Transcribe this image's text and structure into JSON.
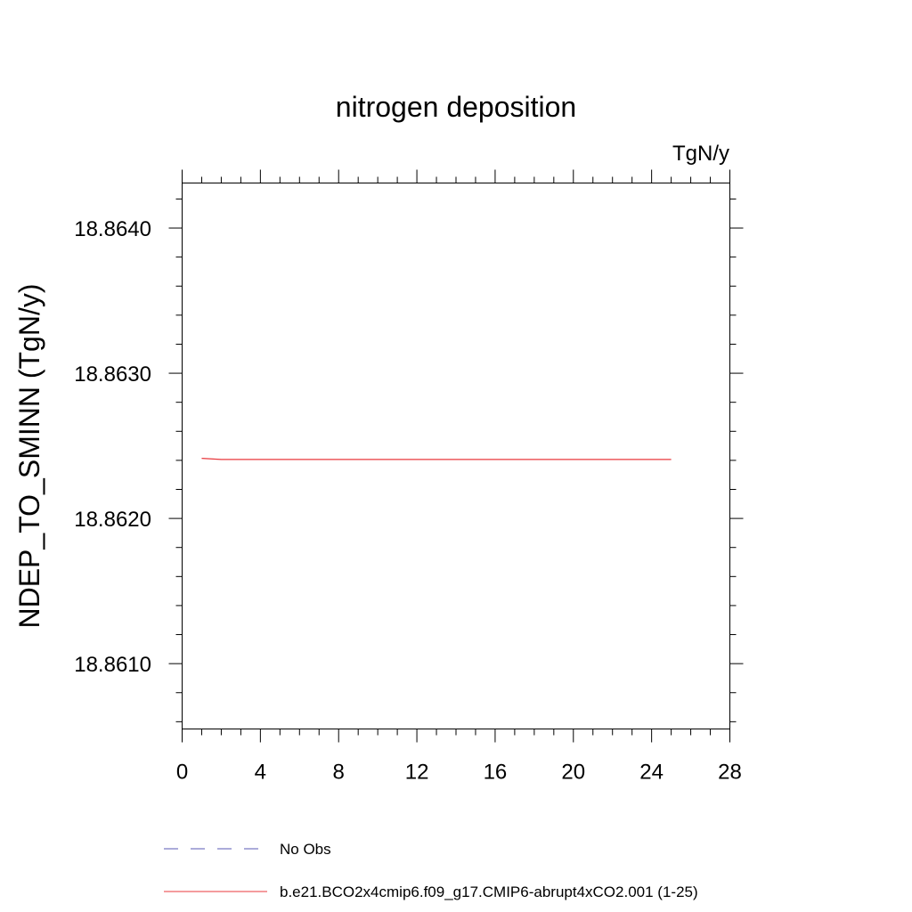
{
  "chart_data": {
    "type": "line",
    "title": "nitrogen deposition",
    "units_label": "TgN/y",
    "ylabel": "NDEP_TO_SMINN  (TgN/y)",
    "xlabel": "",
    "xlim": [
      0,
      28
    ],
    "ylim": [
      18.86055,
      18.86431
    ],
    "x_ticks": [
      0,
      4,
      8,
      12,
      16,
      20,
      24,
      28
    ],
    "x_tick_labels": [
      "0",
      "4",
      "8",
      "12",
      "16",
      "20",
      "24",
      "28"
    ],
    "y_ticks": [
      18.861,
      18.862,
      18.863,
      18.864
    ],
    "y_tick_labels": [
      "18.8610",
      "18.8620",
      "18.8630",
      "18.8640"
    ],
    "grid": false,
    "legend_position": "bottom",
    "series": [
      {
        "name": "No Obs",
        "color": "#5a5ab4",
        "style": "dashed",
        "x": [],
        "y": []
      },
      {
        "name": "b.e21.BCO2x4cmip6.f09_g17.CMIP6-abrupt4xCO2.001 (1-25)",
        "color": "#e8383d",
        "style": "solid",
        "x": [
          1,
          2,
          3,
          4,
          5,
          6,
          7,
          8,
          9,
          10,
          11,
          12,
          13,
          14,
          15,
          16,
          17,
          18,
          19,
          20,
          21,
          22,
          23,
          24,
          25
        ],
        "y": [
          18.862414,
          18.862406,
          18.862406,
          18.862406,
          18.862406,
          18.862406,
          18.862406,
          18.862406,
          18.862406,
          18.862406,
          18.862406,
          18.862406,
          18.862406,
          18.862406,
          18.862406,
          18.862406,
          18.862406,
          18.862406,
          18.862406,
          18.862406,
          18.862406,
          18.862406,
          18.862406,
          18.862406,
          18.862406
        ]
      }
    ]
  }
}
